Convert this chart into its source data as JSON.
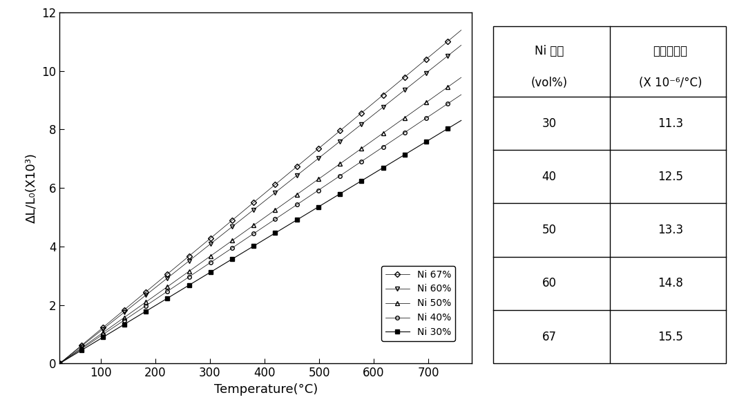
{
  "title": "",
  "xlabel": "Temperature(°C)",
  "ylabel": "ΔL/L₀(X10³)",
  "xlim": [
    25,
    780
  ],
  "ylim": [
    0,
    12
  ],
  "xticks": [
    100,
    200,
    300,
    400,
    500,
    600,
    700
  ],
  "yticks": [
    0,
    2,
    4,
    6,
    8,
    10,
    12
  ],
  "series": [
    {
      "label": "Ni 67%",
      "cte": 15.5,
      "marker": "D",
      "color": "#000000",
      "fillstyle": "none",
      "markersize": 4
    },
    {
      "label": "Ni 60%",
      "cte": 14.8,
      "marker": "v",
      "color": "#000000",
      "fillstyle": "none",
      "markersize": 4
    },
    {
      "label": "Ni 50%",
      "cte": 13.3,
      "marker": "^",
      "color": "#000000",
      "fillstyle": "none",
      "markersize": 4
    },
    {
      "label": "Ni 40%",
      "cte": 12.5,
      "marker": "o",
      "color": "#000000",
      "fillstyle": "none",
      "markersize": 4
    },
    {
      "label": "Ni 30%",
      "cte": 11.3,
      "marker": "s",
      "color": "#000000",
      "fillstyle": "full",
      "markersize": 4
    }
  ],
  "table_col1_header": "Ni 함량",
  "table_col2_header": "열팩창계수",
  "table_col1_sub": "(vol%)",
  "table_col2_sub": "(X 10⁻⁶/°C)",
  "table_rows": [
    {
      "ni": "30",
      "cte": "11.3"
    },
    {
      "ni": "40",
      "cte": "12.5"
    },
    {
      "ni": "50",
      "cte": "13.3"
    },
    {
      "ni": "60",
      "cte": "14.8"
    },
    {
      "ni": "67",
      "cte": "15.5"
    }
  ],
  "background_color": "#ffffff",
  "axis_color": "#000000",
  "legend_fontsize": 10,
  "axis_fontsize": 13,
  "tick_fontsize": 12,
  "table_fontsize": 12
}
